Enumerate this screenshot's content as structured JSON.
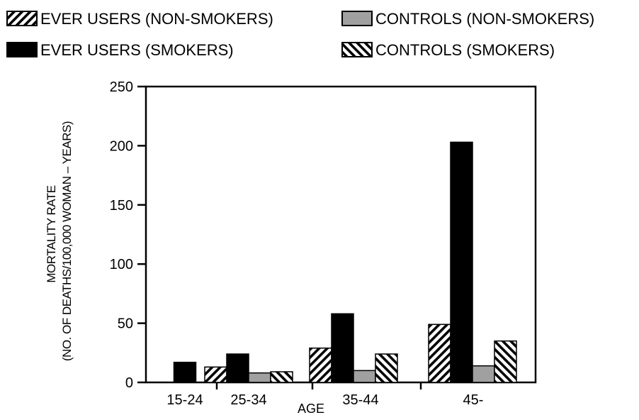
{
  "chart_data": {
    "type": "bar",
    "title": "",
    "xlabel": "AGE",
    "ylabel_line1": "MORTALITY RATE",
    "ylabel_line2": "(NO. OF DEATHS/100,000 WOMAN – YEARS)",
    "categories": [
      "15-24",
      "25-34",
      "35-44",
      "45-"
    ],
    "ylim": [
      0,
      250
    ],
    "yticks": [
      "0",
      "50",
      "100",
      "150",
      "200",
      "250"
    ],
    "grid": false,
    "legend_placement": "top",
    "series": [
      {
        "name": "EVER USERS (NON-SMOKERS)",
        "pattern": "forward-hatch",
        "color": "#000000",
        "values": [
          null,
          13,
          29,
          49
        ]
      },
      {
        "name": "EVER USERS (SMOKERS)",
        "pattern": "solid",
        "color": "#000000",
        "values": [
          17,
          24,
          58,
          203
        ]
      },
      {
        "name": "CONTROLS (NON-SMOKERS)",
        "pattern": "solid",
        "color": "#a0a0a0",
        "values": [
          null,
          8,
          10,
          14
        ]
      },
      {
        "name": "CONTROLS (SMOKERS)",
        "pattern": "back-hatch",
        "color": "#000000",
        "values": [
          null,
          9,
          24,
          35
        ]
      }
    ]
  }
}
